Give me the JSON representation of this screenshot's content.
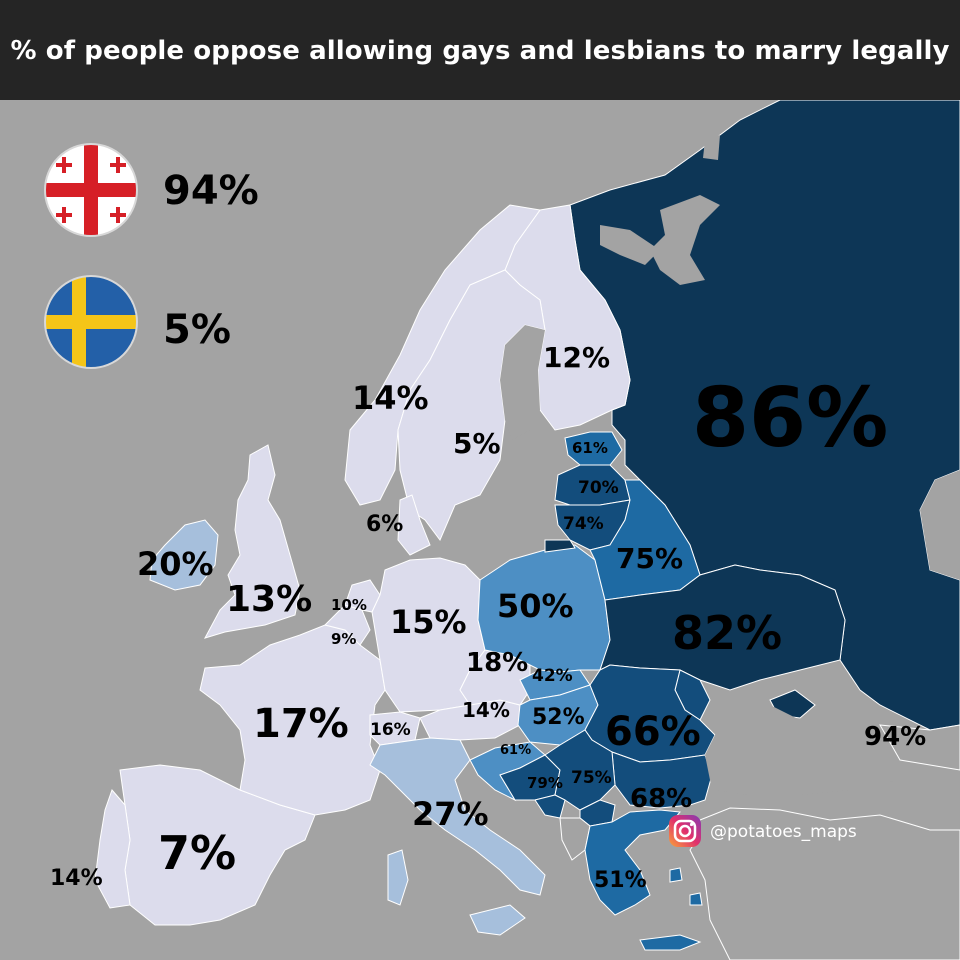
{
  "title": "% of people oppose allowing gays and lesbians to marry legally",
  "colors": {
    "background": "#a3a3a3",
    "title_bar": "#252525",
    "very_low": "#dcdcec",
    "low_mid": "#a6bfdc",
    "mid": "#4d8fc4",
    "mid_high": "#1e6aa3",
    "high": "#134d7c",
    "very_high": "#0d3656"
  },
  "legend": [
    {
      "flag": "georgia-flag-icon",
      "value": "94%"
    },
    {
      "flag": "sweden-flag-icon",
      "value": "5%"
    }
  ],
  "regions": {
    "russia": "86%",
    "ukraine": "82%",
    "belarus": "75%",
    "romania": "66%",
    "bulgaria": "68%",
    "poland": "50%",
    "hungary": "52%",
    "slovakia": "42%",
    "czechia": "18%",
    "austria": "14%",
    "germany": "15%",
    "france": "17%",
    "spain": "7%",
    "portugal": "14%",
    "italy": "27%",
    "switzerland": "16%",
    "uk": "13%",
    "ireland": "20%",
    "norway": "14%",
    "sweden": "5%",
    "finland": "12%",
    "denmark": "6%",
    "netherlands": "10%",
    "belgium": "9%",
    "estonia": "61%",
    "latvia": "70%",
    "lithuania": "74%",
    "croatia": "61%",
    "bosnia": "79%",
    "serbia": "75%",
    "greece": "51%",
    "georgia": "94%"
  },
  "credit": {
    "icon": "instagram-icon",
    "handle": "@potatoes_maps"
  }
}
